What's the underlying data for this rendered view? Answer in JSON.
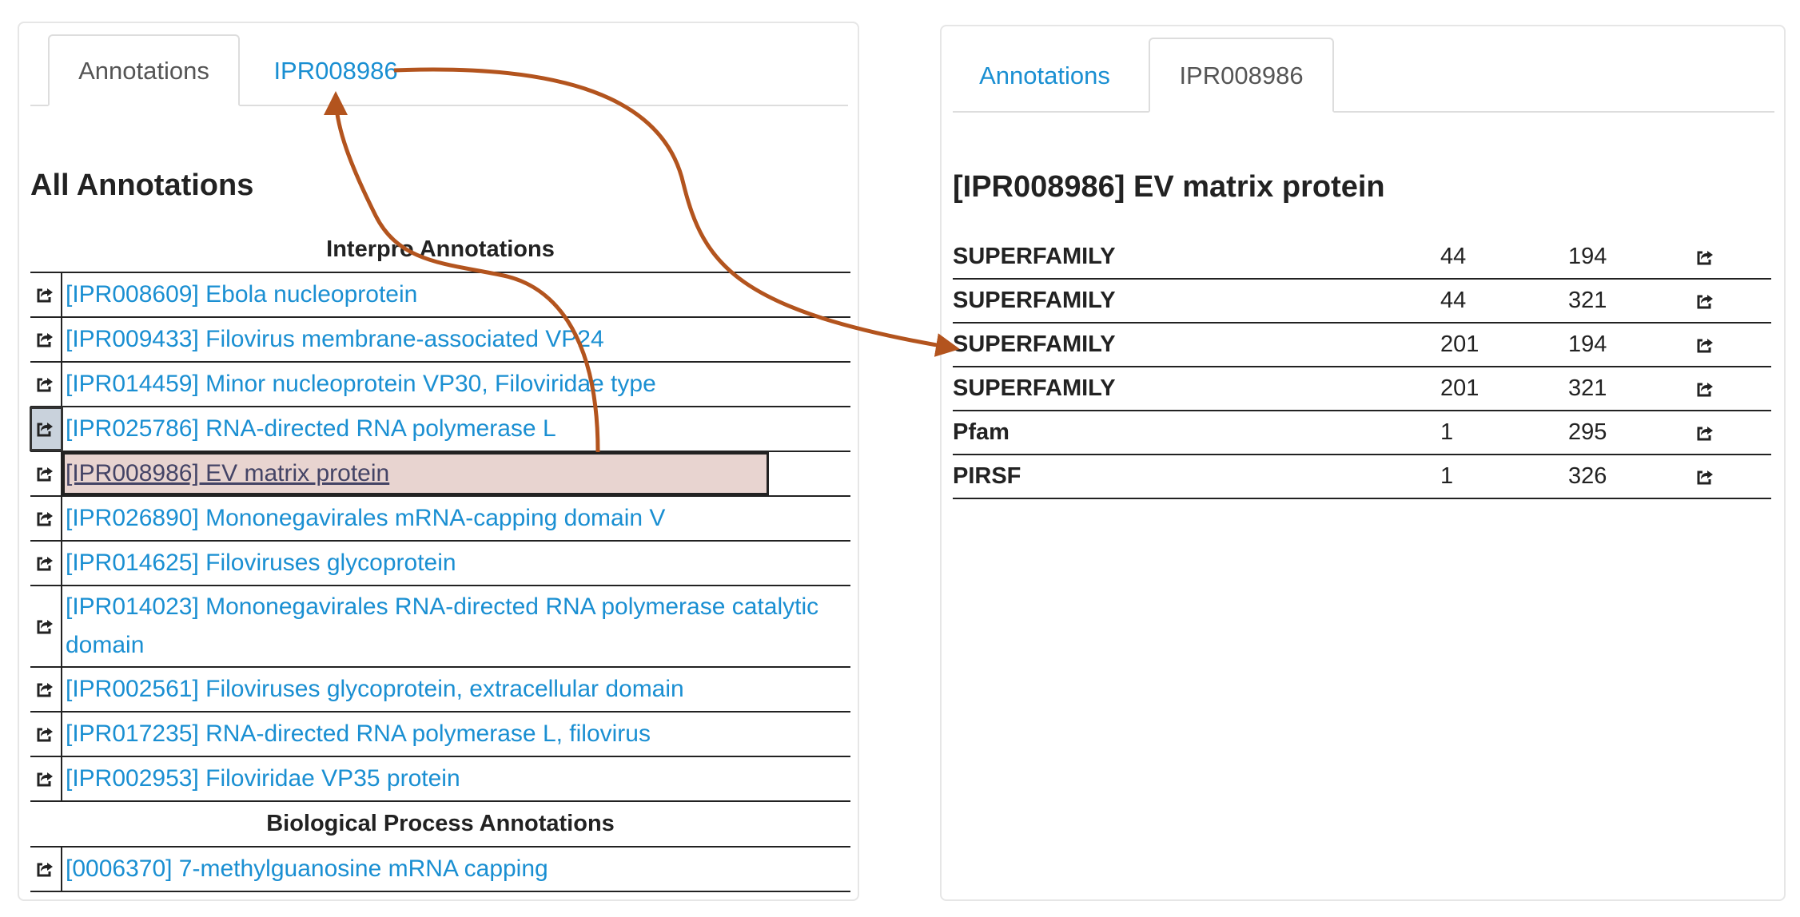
{
  "left": {
    "tabs": [
      {
        "label": "Annotations",
        "active": true
      },
      {
        "label": "IPR008986",
        "active": false
      }
    ],
    "heading": "All Annotations",
    "groups": [
      {
        "title": "Interpro Annotations",
        "items": [
          {
            "label": "[IPR008609] Ebola nucleoprotein"
          },
          {
            "label": "[IPR009433] Filovirus membrane-associated VP24"
          },
          {
            "label": "[IPR014459] Minor nucleoprotein VP30, Filoviridae type"
          },
          {
            "label": "[IPR025786] RNA-directed RNA polymerase L"
          },
          {
            "label": "[IPR008986] EV matrix protein"
          },
          {
            "label": "[IPR026890] Mononegavirales mRNA-capping domain V"
          },
          {
            "label": "[IPR014625] Filoviruses glycoprotein"
          },
          {
            "label": "[IPR014023] Mononegavirales RNA-directed RNA polymerase catalytic domain"
          },
          {
            "label": "[IPR002561] Filoviruses glycoprotein, extracellular domain"
          },
          {
            "label": "[IPR017235] RNA-directed RNA polymerase L, filovirus"
          },
          {
            "label": "[IPR002953] Filoviridae VP35 protein"
          }
        ]
      },
      {
        "title": "Biological Process Annotations",
        "items": [
          {
            "label": "[0006370] 7-methylguanosine mRNA capping"
          }
        ]
      }
    ]
  },
  "right": {
    "tabs": [
      {
        "label": "Annotations",
        "active": false
      },
      {
        "label": "IPR008986",
        "active": true
      }
    ],
    "heading": "[IPR008986] EV matrix protein",
    "rows": [
      {
        "source": "SUPERFAMILY",
        "start": "44",
        "end": "194"
      },
      {
        "source": "SUPERFAMILY",
        "start": "44",
        "end": "321"
      },
      {
        "source": "SUPERFAMILY",
        "start": "201",
        "end": "194"
      },
      {
        "source": "SUPERFAMILY",
        "start": "201",
        "end": "321"
      },
      {
        "source": "Pfam",
        "start": "1",
        "end": "295"
      },
      {
        "source": "PIRSF",
        "start": "1",
        "end": "326"
      }
    ]
  },
  "colors": {
    "link": "#1a8fd2",
    "arrow": "#b3541e",
    "selected_row_bg": "#e8d4d0"
  },
  "icons": {
    "row_action": "external-link-icon"
  }
}
